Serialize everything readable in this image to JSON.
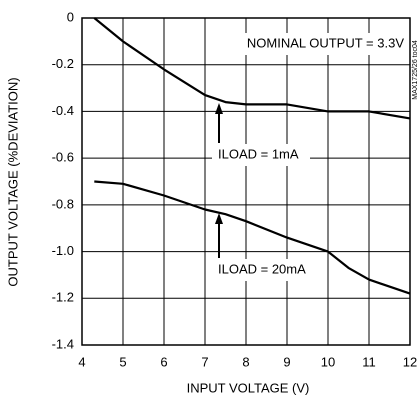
{
  "chart_data": {
    "type": "line",
    "x_label": "INPUT VOLTAGE (V)",
    "y_label": "OUTPUT VOLTAGE (%DEVIATION)",
    "annotation": "NOMINAL OUTPUT = 3.3V",
    "note": "MAX1725/26 toc04",
    "x": [
      4.3,
      5,
      6,
      7,
      7.5,
      8,
      9,
      10,
      10.5,
      11,
      12
    ],
    "series": [
      {
        "name": "ILOAD = 1mA",
        "color": "#000000",
        "values": [
          0,
          -0.1,
          -0.22,
          -0.33,
          -0.36,
          -0.37,
          -0.37,
          -0.4,
          -0.4,
          -0.4,
          -0.43
        ]
      },
      {
        "name": "ILOAD = 20mA",
        "color": "#000000",
        "values": [
          -0.7,
          -0.71,
          -0.76,
          -0.82,
          -0.84,
          -0.87,
          -0.94,
          -1.0,
          -1.07,
          -1.12,
          -1.18
        ]
      }
    ],
    "xlim": [
      4,
      12
    ],
    "xticks": [
      4,
      5,
      6,
      7,
      8,
      9,
      10,
      11,
      12
    ],
    "ylim": [
      -1.4,
      0
    ],
    "yticks": [
      0,
      -0.2,
      -0.4,
      -0.6,
      -0.8,
      {
        "value": -1,
        "label": "-1.0"
      },
      -1.2,
      -1.4
    ],
    "grid": true
  }
}
